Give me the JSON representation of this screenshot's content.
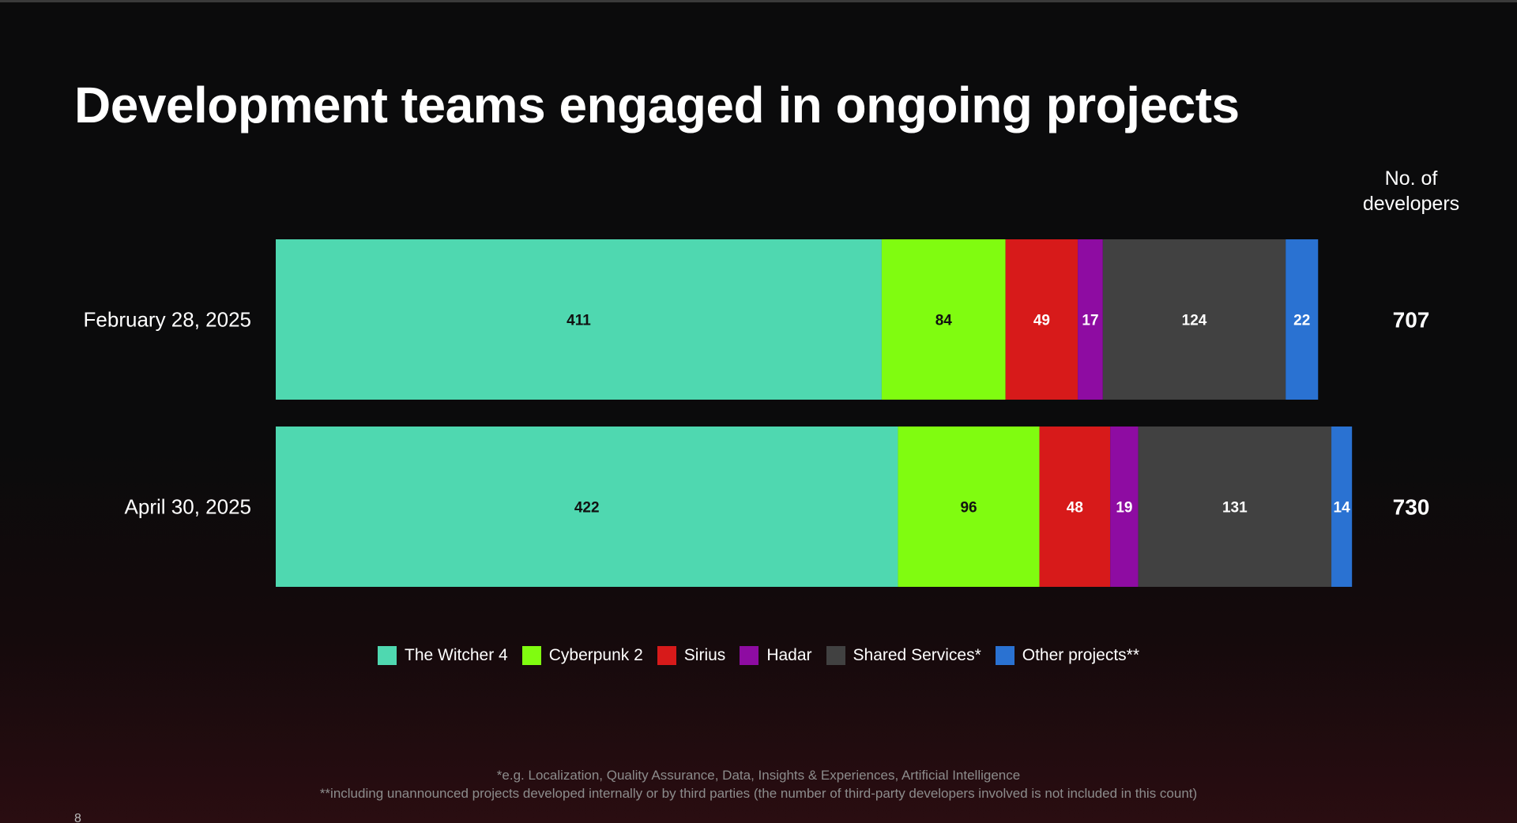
{
  "slide": {
    "title": "Development teams engaged in ongoing projects",
    "total_header_line1": "No. of",
    "total_header_line2": "developers",
    "footnote1": "*e.g. Localization, Quality Assurance, Data, Insights & Experiences, Artificial Intelligence",
    "footnote2": "**including unannounced projects developed internally or by third parties (the number of third-party developers involved is not included in this count)",
    "page_number": "8"
  },
  "chart_data": {
    "type": "bar",
    "orientation": "horizontal",
    "stacked": true,
    "title": "Development teams engaged in ongoing projects",
    "categories": [
      "February 28, 2025",
      "April 30, 2025"
    ],
    "series": [
      {
        "name": "The Witcher 4",
        "color": "#4fd8b0",
        "label_color": "#111111",
        "values": [
          411,
          422
        ]
      },
      {
        "name": "Cyberpunk 2",
        "color": "#80fc10",
        "label_color": "#111111",
        "values": [
          84,
          96
        ]
      },
      {
        "name": "Sirius",
        "color": "#d71a1a",
        "label_color": "#ffffff",
        "values": [
          49,
          48
        ]
      },
      {
        "name": "Hadar",
        "color": "#8e0ca2",
        "label_color": "#ffffff",
        "values": [
          17,
          19
        ]
      },
      {
        "name": "Shared Services*",
        "color": "#414141",
        "label_color": "#ffffff",
        "values": [
          124,
          131
        ]
      },
      {
        "name": "Other projects**",
        "color": "#2a72d2",
        "label_color": "#ffffff",
        "values": [
          22,
          14
        ]
      }
    ],
    "totals_label": "No. of developers",
    "totals": [
      707,
      730
    ],
    "xlim": [
      0,
      730
    ],
    "grid": false,
    "legend": "bottom-center"
  }
}
